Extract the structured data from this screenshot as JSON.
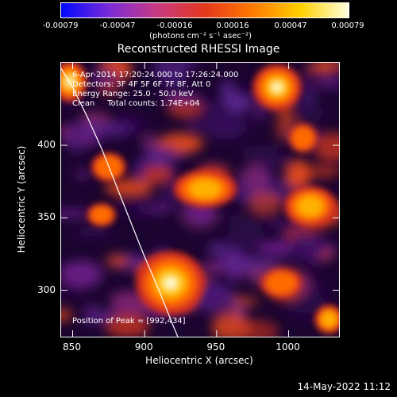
{
  "colorbar": {
    "ticks": [
      "-0.00079",
      "-0.00047",
      "-0.00016",
      "0.00016",
      "0.00047",
      "0.00079"
    ],
    "tick_values": [
      -0.00079,
      -0.00047,
      -0.00016,
      0.00016,
      0.00047,
      0.00079
    ],
    "units": "(photons cm⁻² s⁻¹ asec⁻²)",
    "stops": [
      "#0008ff",
      "#7a2bd8",
      "#c93a82",
      "#e4371c",
      "#ff7a00",
      "#ffd000",
      "#ffffe0"
    ]
  },
  "title": "Reconstructed RHESSI Image",
  "annotations": {
    "time": "6-Apr-2014 17:20:24.000 to 17:26:24.000",
    "detectors": "Detectors: 3F 4F 5F 6F 7F 8F, Att 0",
    "energy": "Energy Range: 25.0 - 50.0 keV",
    "clean": "Clean     Total counts: 1.74E+04",
    "peak": "Position of Peak = [992,434]"
  },
  "chart_data": {
    "type": "heatmap",
    "xlabel": "Heliocentric X (arcsec)",
    "ylabel": "Heliocentric Y (arcsec)",
    "xlim": [
      842,
      1035
    ],
    "ylim": [
      268,
      457
    ],
    "xticks": [
      850,
      900,
      950,
      1000
    ],
    "yticks": [
      300,
      350,
      400
    ],
    "x_tick_labels": [
      "850",
      "900",
      "950",
      "1000"
    ],
    "y_tick_labels": [
      "300",
      "350",
      "400"
    ],
    "peak": [
      992,
      434
    ],
    "sources": [
      {
        "x": 992,
        "y": 440,
        "level": 1.0,
        "rx": 17,
        "ry": 16
      },
      {
        "x": 918,
        "y": 305,
        "level": 0.95,
        "rx": 24,
        "ry": 22
      },
      {
        "x": 848,
        "y": 444,
        "level": 0.9,
        "rx": 12,
        "ry": 14
      },
      {
        "x": 942,
        "y": 370,
        "level": 0.55,
        "rx": 22,
        "ry": 13
      },
      {
        "x": 1015,
        "y": 358,
        "level": 0.6,
        "rx": 18,
        "ry": 14
      },
      {
        "x": 1028,
        "y": 280,
        "level": 0.55,
        "rx": 10,
        "ry": 10
      },
      {
        "x": 875,
        "y": 385,
        "level": 0.45,
        "rx": 12,
        "ry": 10
      },
      {
        "x": 995,
        "y": 305,
        "level": 0.4,
        "rx": 14,
        "ry": 10
      },
      {
        "x": 870,
        "y": 352,
        "level": 0.4,
        "rx": 10,
        "ry": 8
      },
      {
        "x": 1010,
        "y": 405,
        "level": 0.45,
        "rx": 10,
        "ry": 10
      }
    ],
    "limb_curve": [
      [
        842,
        453
      ],
      [
        850,
        440
      ],
      [
        860,
        420
      ],
      [
        870,
        398
      ],
      [
        880,
        373
      ],
      [
        890,
        348
      ],
      [
        900,
        323
      ],
      [
        910,
        300
      ],
      [
        920,
        275
      ],
      [
        923,
        268
      ]
    ]
  },
  "timestamp": "14-May-2022 11:12"
}
